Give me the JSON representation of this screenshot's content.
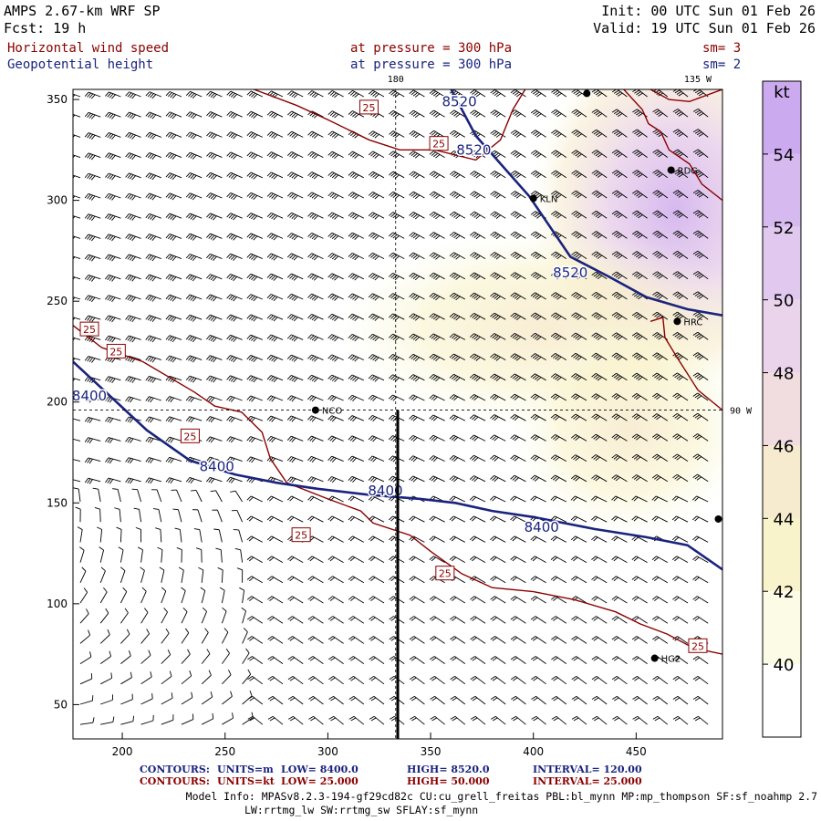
{
  "header": {
    "model": "AMPS 2.67-km WRF SP",
    "fcst": "Fcst:   19 h",
    "init": "Init: 00 UTC Sun 01 Feb 26",
    "valid": "Valid: 19 UTC Sun 01 Feb 26",
    "field1_name": "Horizontal wind speed",
    "field1_level": "at pressure =  300 hPa",
    "field1_sm": "sm= 3",
    "field2_name": "Geopotential height",
    "field2_level": "at pressure =  300 hPa",
    "field2_sm": "sm= 2"
  },
  "colors": {
    "height_contour": "#1a237e",
    "speed_contour": "#8b0000",
    "text_red": "#8b0000",
    "text_blue": "#1a237e"
  },
  "chart_data": {
    "type": "contour",
    "title": "Horizontal wind speed / Geopotential height at 300 hPa",
    "x_range": [
      176,
      492
    ],
    "y_range": [
      33,
      355
    ],
    "x_ticks": [
      "200",
      "250",
      "300",
      "350",
      "400",
      "450"
    ],
    "y_ticks": [
      "50",
      "100",
      "150",
      "200",
      "250",
      "300",
      "350"
    ],
    "meridian_labels": [
      {
        "text": "180",
        "x": 333,
        "y": 355
      },
      {
        "text": "135 W",
        "x": 480,
        "y": 355
      },
      {
        "text": "90 W",
        "x": 492,
        "y": 196
      }
    ],
    "stations": [
      {
        "name": "RDG",
        "x": 467,
        "y": 315
      },
      {
        "name": "KLN",
        "x": 400,
        "y": 301
      },
      {
        "name": "HRC",
        "x": 470,
        "y": 240
      },
      {
        "name": "NCO",
        "x": 294,
        "y": 196
      },
      {
        "name": "HG2",
        "x": 459,
        "y": 73
      },
      {
        "name": "",
        "x": 426,
        "y": 353
      },
      {
        "name": "",
        "x": 490,
        "y": 142
      }
    ],
    "height_contours": [
      {
        "label": "8520",
        "label_at": [
          364,
          349
        ],
        "label2": "8520",
        "label2_at": [
          371,
          325
        ],
        "label3": "8520",
        "label3_at": [
          418,
          264
        ],
        "points": [
          [
            360,
            355
          ],
          [
            372,
            332
          ],
          [
            398,
            302
          ],
          [
            418,
            272
          ],
          [
            437,
            262
          ],
          [
            455,
            252
          ],
          [
            475,
            246
          ],
          [
            492,
            243
          ]
        ]
      },
      {
        "label": "8400",
        "label_at": [
          184,
          203
        ],
        "label2": "8400",
        "label2_at": [
          246,
          168
        ],
        "label3": "8400",
        "label3_at": [
          328,
          156
        ],
        "label4": "8400",
        "label4_at": [
          404,
          138
        ],
        "points": [
          [
            176,
            220
          ],
          [
            194,
            203
          ],
          [
            212,
            186
          ],
          [
            233,
            171
          ],
          [
            255,
            164
          ],
          [
            275,
            160
          ],
          [
            295,
            157
          ],
          [
            320,
            154
          ],
          [
            345,
            152
          ],
          [
            362,
            150
          ],
          [
            380,
            146
          ],
          [
            400,
            143
          ],
          [
            430,
            137
          ],
          [
            455,
            133
          ],
          [
            475,
            129
          ],
          [
            492,
            117
          ]
        ]
      }
    ],
    "speed_contours": [
      {
        "label": "25",
        "points": [
          [
            264,
            355
          ],
          [
            285,
            347
          ],
          [
            300,
            340
          ],
          [
            320,
            330
          ],
          [
            335,
            325
          ],
          [
            352,
            325
          ],
          [
            372,
            320
          ],
          [
            384,
            330
          ],
          [
            390,
            345
          ],
          [
            396,
            355
          ]
        ]
      },
      {
        "label": "25",
        "points": [
          [
            176,
            238
          ],
          [
            190,
            227
          ],
          [
            210,
            220
          ],
          [
            235,
            205
          ],
          [
            245,
            198
          ],
          [
            258,
            195
          ],
          [
            268,
            185
          ],
          [
            272,
            172
          ],
          [
            280,
            160
          ],
          [
            300,
            152
          ],
          [
            316,
            146
          ],
          [
            322,
            140
          ],
          [
            340,
            134
          ],
          [
            350,
            126
          ],
          [
            365,
            115
          ],
          [
            380,
            108
          ],
          [
            400,
            106
          ],
          [
            420,
            102
          ],
          [
            440,
            96
          ],
          [
            452,
            90
          ],
          [
            465,
            85
          ],
          [
            478,
            78
          ],
          [
            492,
            75
          ]
        ]
      },
      {
        "label": "",
        "points": [
          [
            444,
            355
          ],
          [
            453,
            345
          ],
          [
            456,
            338
          ],
          [
            462,
            334
          ],
          [
            466,
            325
          ],
          [
            476,
            318
          ],
          [
            482,
            308
          ],
          [
            492,
            300
          ]
        ]
      },
      {
        "label": "",
        "points": [
          [
            457,
            240
          ],
          [
            463,
            242
          ],
          [
            464,
            232
          ],
          [
            470,
            222
          ],
          [
            480,
            206
          ],
          [
            492,
            196
          ]
        ]
      },
      {
        "label": "",
        "points": [
          [
            457,
            355
          ],
          [
            466,
            350
          ],
          [
            476,
            349
          ],
          [
            492,
            355
          ]
        ]
      }
    ],
    "speed_labels": [
      {
        "text": "25",
        "x": 320,
        "y": 346
      },
      {
        "text": "25",
        "x": 354,
        "y": 328
      },
      {
        "text": "25",
        "x": 184,
        "y": 236
      },
      {
        "text": "25",
        "x": 197,
        "y": 225
      },
      {
        "text": "25",
        "x": 233,
        "y": 183
      },
      {
        "text": "25",
        "x": 287,
        "y": 134
      },
      {
        "text": "25",
        "x": 357,
        "y": 115
      },
      {
        "text": "25",
        "x": 480,
        "y": 79
      }
    ],
    "colorbar": {
      "unit": "kt",
      "levels": [
        "40",
        "42",
        "44",
        "46",
        "48",
        "50",
        "52",
        "54"
      ],
      "colors": [
        "#ffffff",
        "#fbfbe6",
        "#f9f3cc",
        "#f7ebcf",
        "#f1dde0",
        "#ead4ec",
        "#e0c8ee",
        "#d6b9ef",
        "#ccaaf0"
      ]
    },
    "vertical_section_line": {
      "x": 334,
      "y_from": 33,
      "y_to": 196
    }
  },
  "footer": {
    "contours1_label": "CONTOURS:",
    "contours1_units": "UNITS=m",
    "contours1_low": "LOW=   8400.0",
    "contours1_high": "HIGH=   8520.0",
    "contours1_interval": "INTERVAL=    120.00",
    "contours2_label": "CONTOURS:",
    "contours2_units": "UNITS=kt",
    "contours2_low": "LOW=   25.000",
    "contours2_high": "HIGH=  50.000",
    "contours2_interval": "INTERVAL=    25.000",
    "model_info1": "Model Info: MPASv8.2.3-194-gf29cd82c CU:cu_grell_freitas PBL:bl_mynn MP:mp_thompson SF:sf_noahmp 2.7",
    "model_info2": "LW:rrtmg_lw SW:rrtmg_sw SFLAY:sf_mynn"
  }
}
